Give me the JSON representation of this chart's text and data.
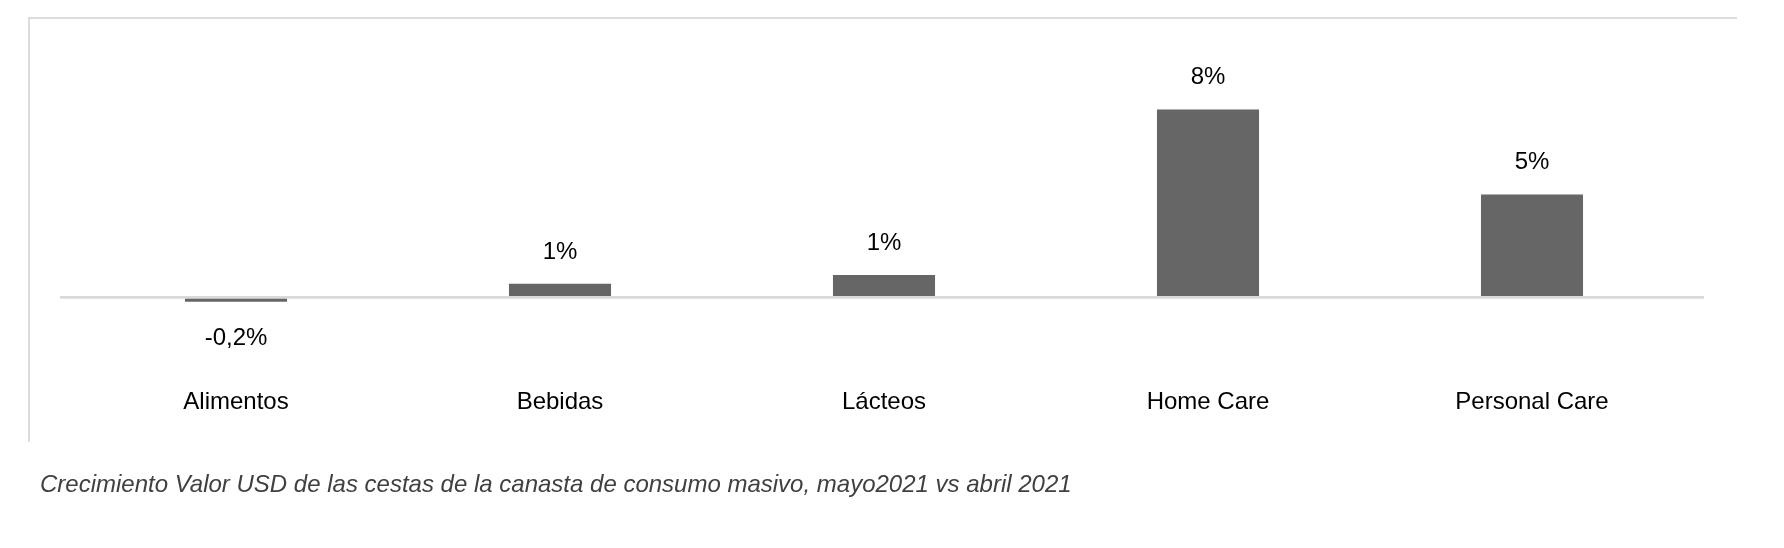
{
  "chart_data": {
    "type": "bar",
    "categories": [
      "Alimentos",
      "Bebidas",
      "Lácteos",
      "Home Care",
      "Personal Care"
    ],
    "values": [
      -0.2,
      0.6,
      1.0,
      8.4,
      4.6
    ],
    "value_labels": [
      "-0,2%",
      "1%",
      "1%",
      "8%",
      "5%"
    ],
    "color": "#666666",
    "annotations": [
      "Crecimiento Valor USD de las cestas de la canasta de consumo masivo, mayo2021 vs abril 2021"
    ]
  }
}
